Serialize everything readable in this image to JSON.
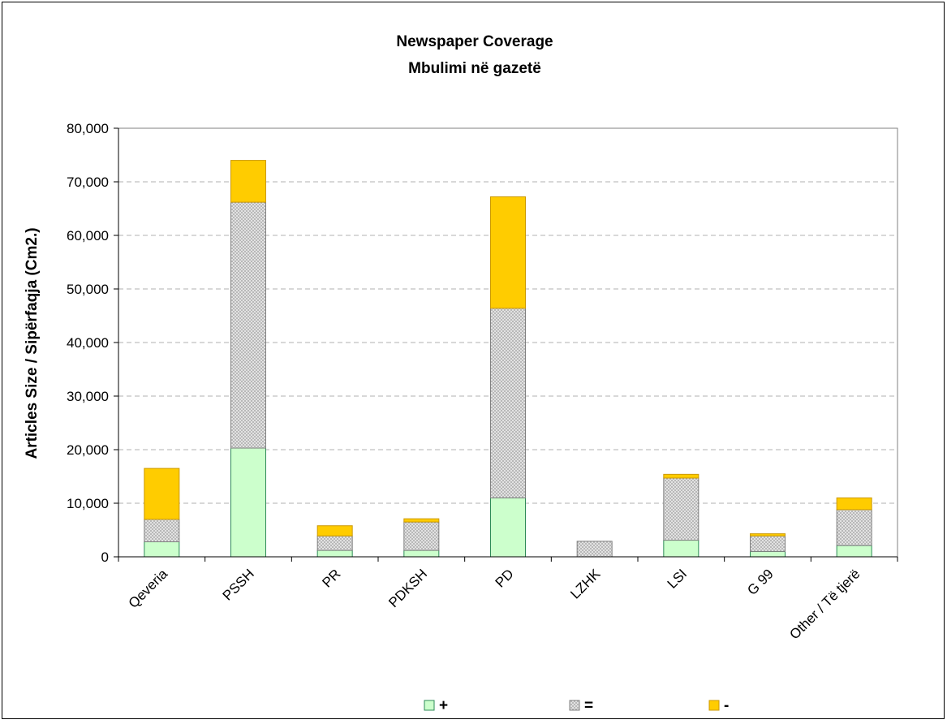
{
  "chart_data": {
    "type": "bar",
    "stacked": true,
    "title": "Newspaper Coverage",
    "subtitle": "Mbulimi në gazetë",
    "xlabel": "",
    "ylabel": "Articles Size  / Sipërfaqja (Cm2.)",
    "ylim": [
      0,
      80000
    ],
    "yticks": [
      0,
      10000,
      20000,
      30000,
      40000,
      50000,
      60000,
      70000,
      80000
    ],
    "ytick_labels": [
      "0",
      "10,000",
      "20,000",
      "30,000",
      "40,000",
      "50,000",
      "60,000",
      "70,000",
      "80,000"
    ],
    "grid": "horizontal dashed",
    "legend_position": "bottom",
    "categories": [
      "Qeveria",
      "PSSH",
      "PR",
      "PDKSH",
      "PD",
      "LZHK",
      "LSI",
      "G 99",
      "Other / Të tjerë"
    ],
    "series": [
      {
        "name": "+",
        "color": "#ccffcc",
        "stroke": "#2e8b57",
        "pattern": "solid",
        "values": [
          2800,
          20300,
          1200,
          1200,
          11000,
          0,
          3100,
          1000,
          2100
        ]
      },
      {
        "name": "=",
        "color": "#d4d4d4",
        "stroke": "#808080",
        "pattern": "dotted",
        "values": [
          4200,
          45900,
          2700,
          5300,
          35400,
          2900,
          11600,
          2900,
          6700
        ]
      },
      {
        "name": "-",
        "color": "#ffcc00",
        "stroke": "#cc9900",
        "pattern": "solid",
        "values": [
          9500,
          7800,
          1900,
          600,
          20800,
          0,
          700,
          400,
          2200
        ]
      }
    ]
  }
}
